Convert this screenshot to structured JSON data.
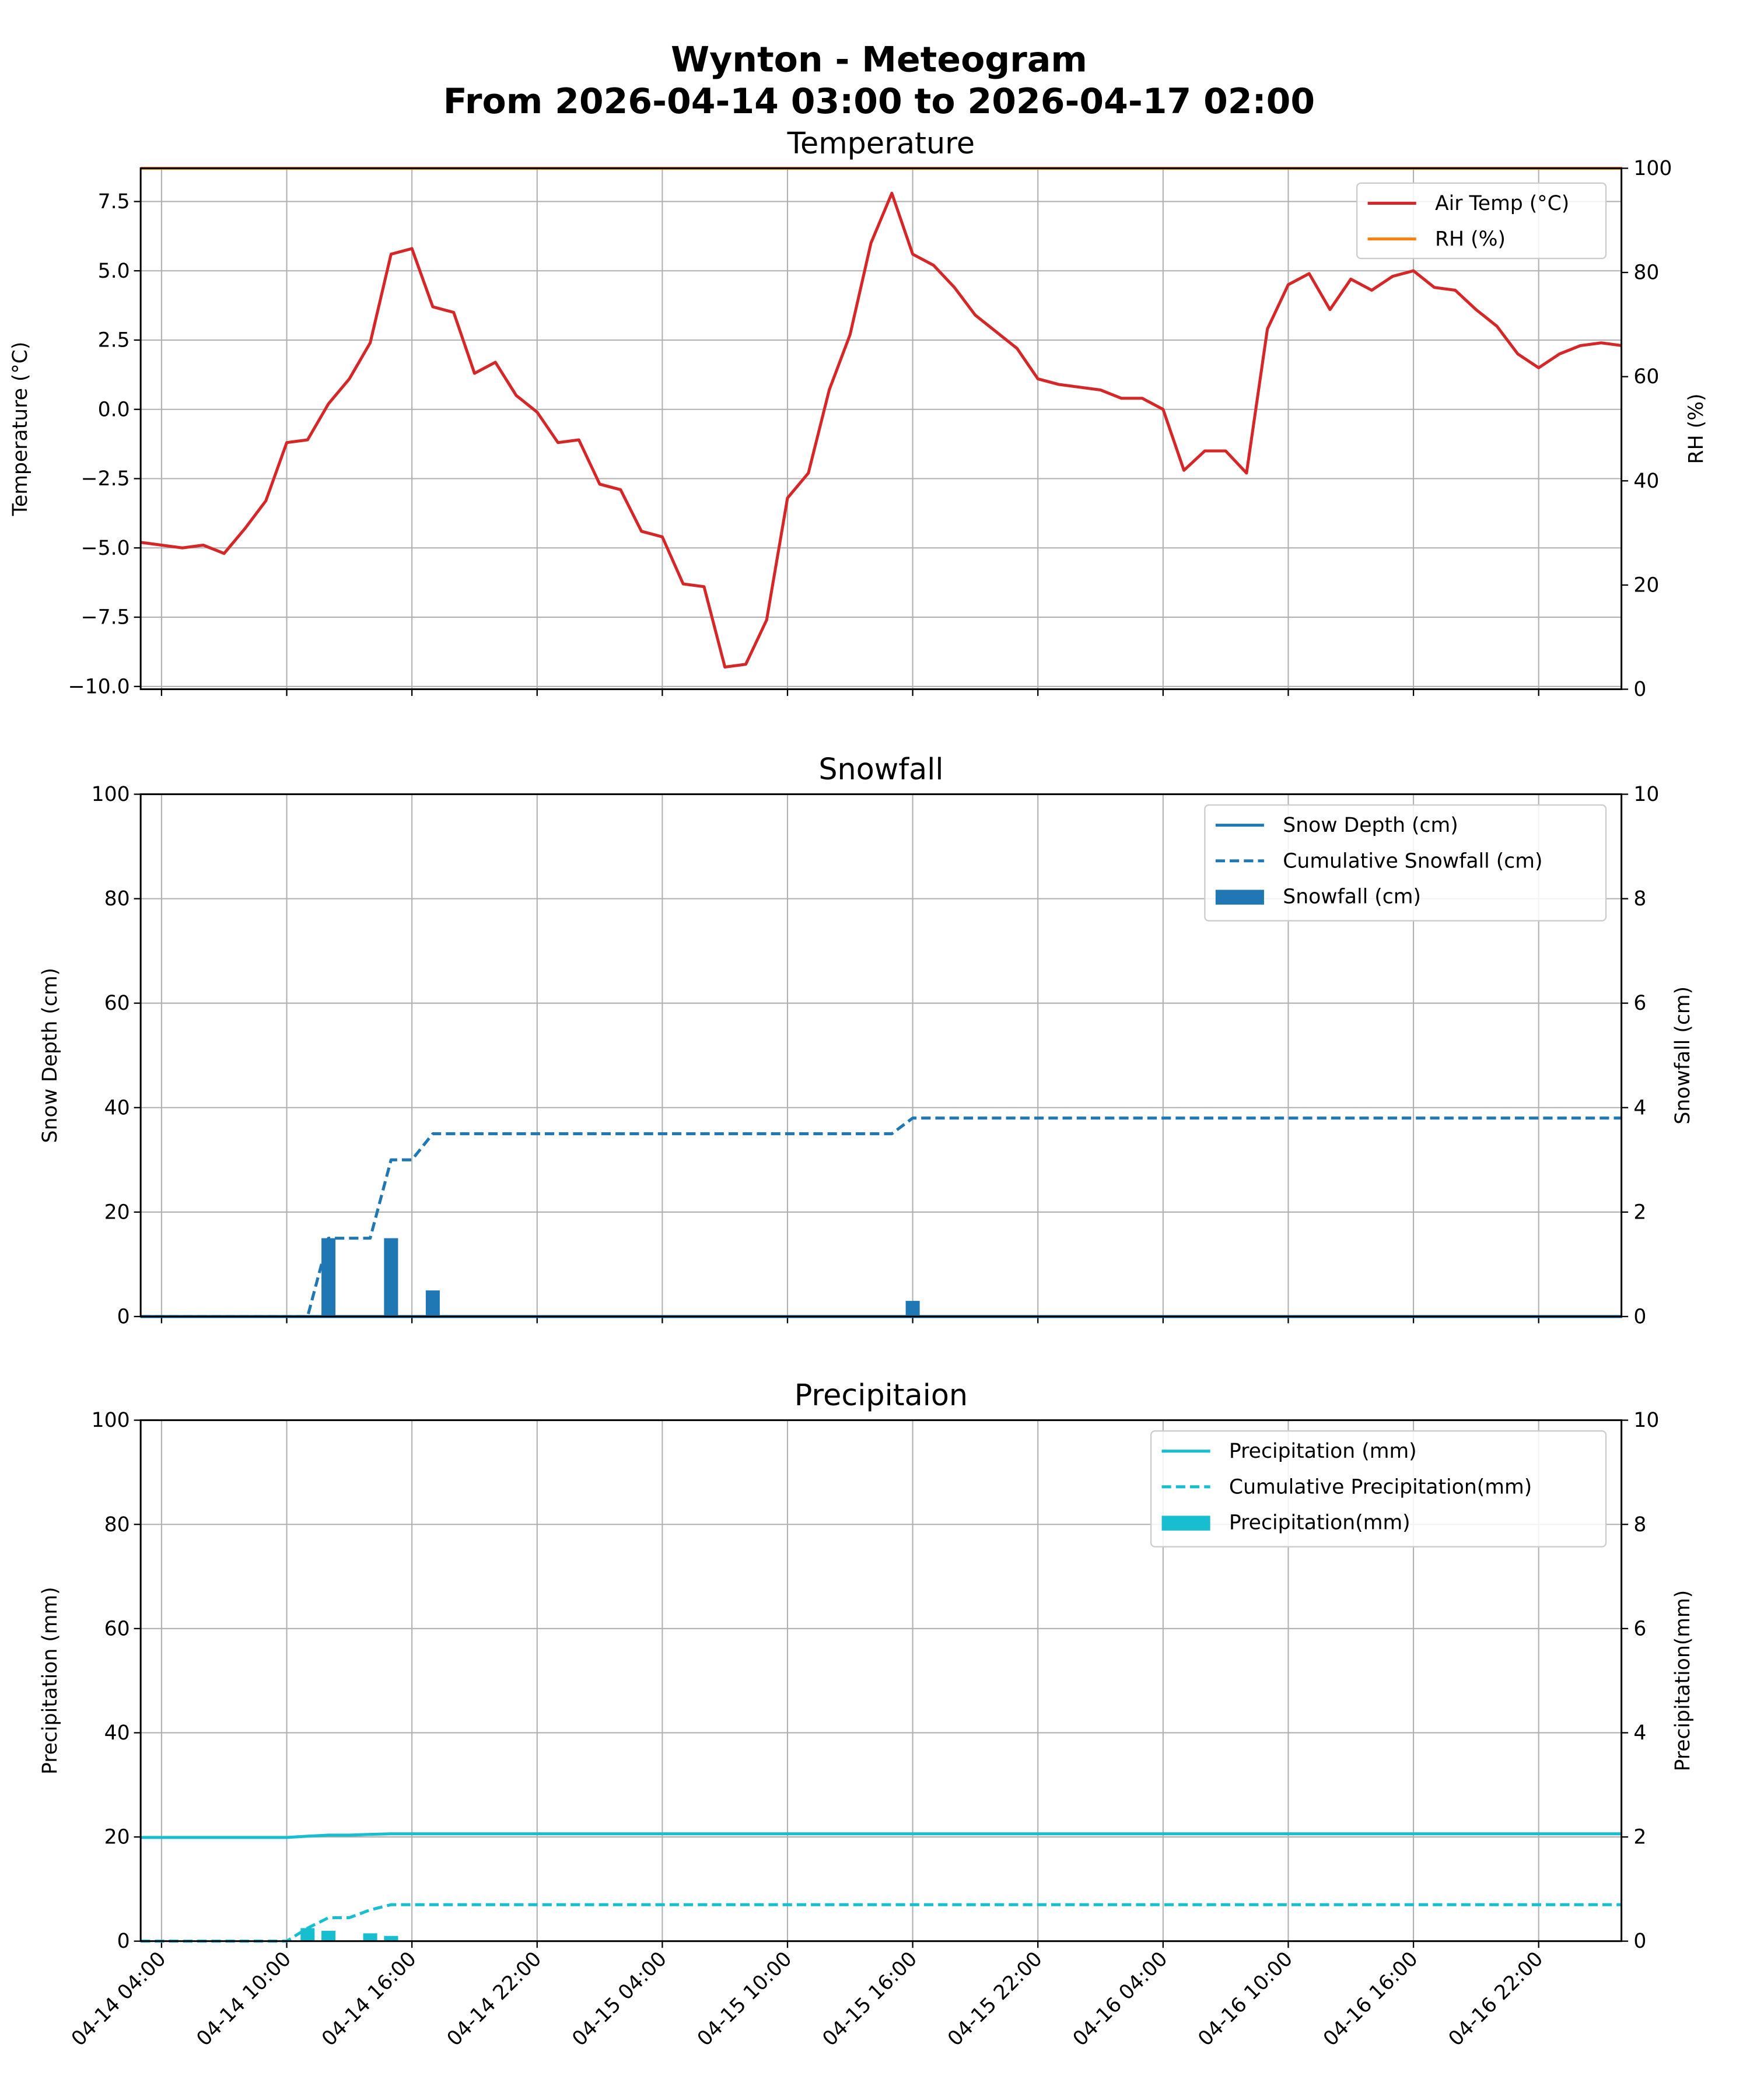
{
  "title": "Wynton - Meteogram",
  "subtitle": "From 2026-04-14 03:00 to 2026-04-17 02:00",
  "colors": {
    "air_temp": "#d62728",
    "rh": "#ff7f0e",
    "snow": "#1f77b4",
    "precip": "#17becf",
    "grid": "#b0b0b0"
  },
  "chart_data": [
    {
      "type": "line",
      "title": "Temperature",
      "ylabel": "Temperature (°C)",
      "ylabel_right": "RH (%)",
      "ylim": [
        -10.1,
        8.7
      ],
      "ylim_right": [
        0,
        100
      ],
      "yticks": [
        "−10.0",
        "−7.5",
        "−5.0",
        "−2.5",
        "0.0",
        "2.5",
        "5.0",
        "7.5"
      ],
      "yticks_right": [
        "0",
        "20",
        "40",
        "60",
        "80",
        "100"
      ],
      "grid": true,
      "legend_position": "top-right",
      "series": [
        {
          "name": "Air Temp (°C)",
          "axis": "left",
          "values": [
            -4.8,
            -4.9,
            -5.0,
            -4.9,
            -5.2,
            -4.3,
            -3.3,
            -1.2,
            -1.1,
            0.2,
            1.1,
            2.4,
            5.6,
            5.8,
            3.7,
            3.5,
            1.3,
            1.7,
            0.5,
            -0.1,
            -1.2,
            -1.1,
            -2.7,
            -2.9,
            -4.4,
            -4.6,
            -6.3,
            -6.4,
            -9.3,
            -9.2,
            -7.6,
            -3.2,
            -2.3,
            0.7,
            2.7,
            6.0,
            7.8,
            5.6,
            5.2,
            4.4,
            3.4,
            2.8,
            2.2,
            1.1,
            0.9,
            0.8,
            0.7,
            0.4,
            0.4,
            0.0,
            -2.2,
            -1.5,
            -1.5,
            -2.3,
            2.9,
            4.5,
            4.9,
            3.6,
            4.7,
            4.3,
            4.8,
            5.0,
            4.4,
            4.3,
            3.6,
            3.0,
            2.0,
            1.5,
            2.0,
            2.3,
            2.4,
            2.3
          ]
        },
        {
          "name": "RH (%)",
          "axis": "right",
          "values": [
            100,
            100,
            100,
            100,
            100,
            100,
            100,
            100,
            100,
            100,
            100,
            100,
            100,
            100,
            100,
            100,
            100,
            100,
            100,
            100,
            100,
            100,
            100,
            100,
            100,
            100,
            100,
            100,
            100,
            100,
            100,
            100,
            100,
            100,
            100,
            100,
            100,
            100,
            100,
            100,
            100,
            100,
            100,
            100,
            100,
            100,
            100,
            100,
            100,
            100,
            100,
            100,
            100,
            100,
            100,
            100,
            100,
            100,
            100,
            100,
            100,
            100,
            100,
            100,
            100,
            100,
            100,
            100,
            100,
            100,
            100,
            100
          ]
        }
      ]
    },
    {
      "type": "bar+line",
      "title": "Snowfall",
      "ylabel": "Snow Depth (cm)",
      "ylabel_right": "Snowfall (cm)",
      "ylim": [
        0,
        100
      ],
      "ylim_right": [
        0,
        10
      ],
      "yticks": [
        "0",
        "20",
        "40",
        "60",
        "80",
        "100"
      ],
      "yticks_right": [
        "0",
        "2",
        "4",
        "6",
        "8",
        "10"
      ],
      "grid": true,
      "legend_position": "top-right",
      "series": [
        {
          "name": "Snow Depth (cm)",
          "kind": "line",
          "axis": "left",
          "values": [
            0,
            0,
            0,
            0,
            0,
            0,
            0,
            0,
            0,
            0,
            0,
            0,
            0,
            0,
            0,
            0,
            0,
            0,
            0,
            0,
            0,
            0,
            0,
            0,
            0,
            0,
            0,
            0,
            0,
            0,
            0,
            0,
            0,
            0,
            0,
            0,
            0,
            0,
            0,
            0,
            0,
            0,
            0,
            0,
            0,
            0,
            0,
            0,
            0,
            0,
            0,
            0,
            0,
            0,
            0,
            0,
            0,
            0,
            0,
            0,
            0,
            0,
            0,
            0,
            0,
            0,
            0,
            0,
            0,
            0,
            0,
            0
          ]
        },
        {
          "name": "Cumulative Snowfall (cm)",
          "kind": "dashed",
          "axis": "right",
          "values": [
            0,
            0,
            0,
            0,
            0,
            0,
            0,
            0,
            0,
            1.5,
            1.5,
            1.5,
            3.0,
            3.0,
            3.5,
            3.5,
            3.5,
            3.5,
            3.5,
            3.5,
            3.5,
            3.5,
            3.5,
            3.5,
            3.5,
            3.5,
            3.5,
            3.5,
            3.5,
            3.5,
            3.5,
            3.5,
            3.5,
            3.5,
            3.5,
            3.5,
            3.5,
            3.8,
            3.8,
            3.8,
            3.8,
            3.8,
            3.8,
            3.8,
            3.8,
            3.8,
            3.8,
            3.8,
            3.8,
            3.8,
            3.8,
            3.8,
            3.8,
            3.8,
            3.8,
            3.8,
            3.8,
            3.8,
            3.8,
            3.8,
            3.8,
            3.8,
            3.8,
            3.8,
            3.8,
            3.8,
            3.8,
            3.8,
            3.8,
            3.8,
            3.8,
            3.8
          ]
        },
        {
          "name": "Snowfall (cm)",
          "kind": "bar",
          "axis": "right",
          "values": [
            0,
            0,
            0,
            0,
            0,
            0,
            0,
            0,
            0,
            1.5,
            0,
            0,
            1.5,
            0,
            0.5,
            0,
            0,
            0,
            0,
            0,
            0,
            0,
            0,
            0,
            0,
            0,
            0,
            0,
            0,
            0,
            0,
            0,
            0,
            0,
            0,
            0,
            0,
            0.3,
            0,
            0,
            0,
            0,
            0,
            0,
            0,
            0,
            0,
            0,
            0,
            0,
            0,
            0,
            0,
            0,
            0,
            0,
            0,
            0,
            0,
            0,
            0,
            0,
            0,
            0,
            0,
            0,
            0,
            0,
            0,
            0,
            0,
            0
          ]
        }
      ]
    },
    {
      "type": "bar+line",
      "title": "Precipitaion",
      "ylabel": "Precipitation (mm)",
      "ylabel_right": "Precipitation(mm)",
      "ylim": [
        0,
        100
      ],
      "ylim_right": [
        0,
        10
      ],
      "yticks": [
        "0",
        "20",
        "40",
        "60",
        "80",
        "100"
      ],
      "yticks_right": [
        "0",
        "2",
        "4",
        "6",
        "8",
        "10"
      ],
      "grid": true,
      "legend_position": "top-right",
      "series": [
        {
          "name": "Precipitation (mm)",
          "kind": "line",
          "axis": "left",
          "values": [
            19.9,
            19.9,
            19.9,
            19.9,
            19.9,
            19.9,
            19.9,
            19.9,
            20.15,
            20.35,
            20.35,
            20.5,
            20.6,
            20.6,
            20.6,
            20.6,
            20.6,
            20.6,
            20.6,
            20.6,
            20.6,
            20.6,
            20.6,
            20.6,
            20.6,
            20.6,
            20.6,
            20.6,
            20.6,
            20.6,
            20.6,
            20.6,
            20.6,
            20.6,
            20.6,
            20.6,
            20.6,
            20.6,
            20.6,
            20.6,
            20.6,
            20.6,
            20.6,
            20.6,
            20.6,
            20.6,
            20.6,
            20.6,
            20.6,
            20.6,
            20.6,
            20.6,
            20.6,
            20.6,
            20.6,
            20.6,
            20.6,
            20.6,
            20.6,
            20.6,
            20.6,
            20.6,
            20.6,
            20.6,
            20.6,
            20.6,
            20.6,
            20.6,
            20.6,
            20.6,
            20.6,
            20.6
          ]
        },
        {
          "name": "Cumulative Precipitation(mm)",
          "kind": "dashed",
          "axis": "right",
          "values": [
            0,
            0,
            0,
            0,
            0,
            0,
            0,
            0,
            0.25,
            0.45,
            0.45,
            0.6,
            0.7,
            0.7,
            0.7,
            0.7,
            0.7,
            0.7,
            0.7,
            0.7,
            0.7,
            0.7,
            0.7,
            0.7,
            0.7,
            0.7,
            0.7,
            0.7,
            0.7,
            0.7,
            0.7,
            0.7,
            0.7,
            0.7,
            0.7,
            0.7,
            0.7,
            0.7,
            0.7,
            0.7,
            0.7,
            0.7,
            0.7,
            0.7,
            0.7,
            0.7,
            0.7,
            0.7,
            0.7,
            0.7,
            0.7,
            0.7,
            0.7,
            0.7,
            0.7,
            0.7,
            0.7,
            0.7,
            0.7,
            0.7,
            0.7,
            0.7,
            0.7,
            0.7,
            0.7,
            0.7,
            0.7,
            0.7,
            0.7,
            0.7,
            0.7,
            0.7
          ]
        },
        {
          "name": "Precipitation(mm)",
          "kind": "bar",
          "axis": "right",
          "values": [
            0,
            0,
            0,
            0,
            0,
            0,
            0,
            0,
            0.25,
            0.2,
            0,
            0.15,
            0.1,
            0,
            0,
            0,
            0,
            0,
            0,
            0,
            0,
            0,
            0,
            0,
            0,
            0,
            0,
            0,
            0,
            0,
            0,
            0,
            0,
            0,
            0,
            0,
            0,
            0,
            0,
            0,
            0,
            0,
            0,
            0,
            0,
            0,
            0,
            0,
            0,
            0,
            0,
            0,
            0,
            0,
            0,
            0,
            0,
            0,
            0,
            0,
            0,
            0,
            0,
            0,
            0,
            0,
            0,
            0,
            0,
            0,
            0,
            0
          ]
        }
      ]
    }
  ],
  "x": {
    "range": [
      "2026-04-14 03:00",
      "2026-04-17 02:00"
    ],
    "step": "1 hour",
    "tick_labels": [
      "04-14 04:00",
      "04-14 10:00",
      "04-14 16:00",
      "04-14 22:00",
      "04-15 04:00",
      "04-15 10:00",
      "04-15 16:00",
      "04-15 22:00",
      "04-16 04:00",
      "04-16 10:00",
      "04-16 16:00",
      "04-16 22:00"
    ]
  }
}
